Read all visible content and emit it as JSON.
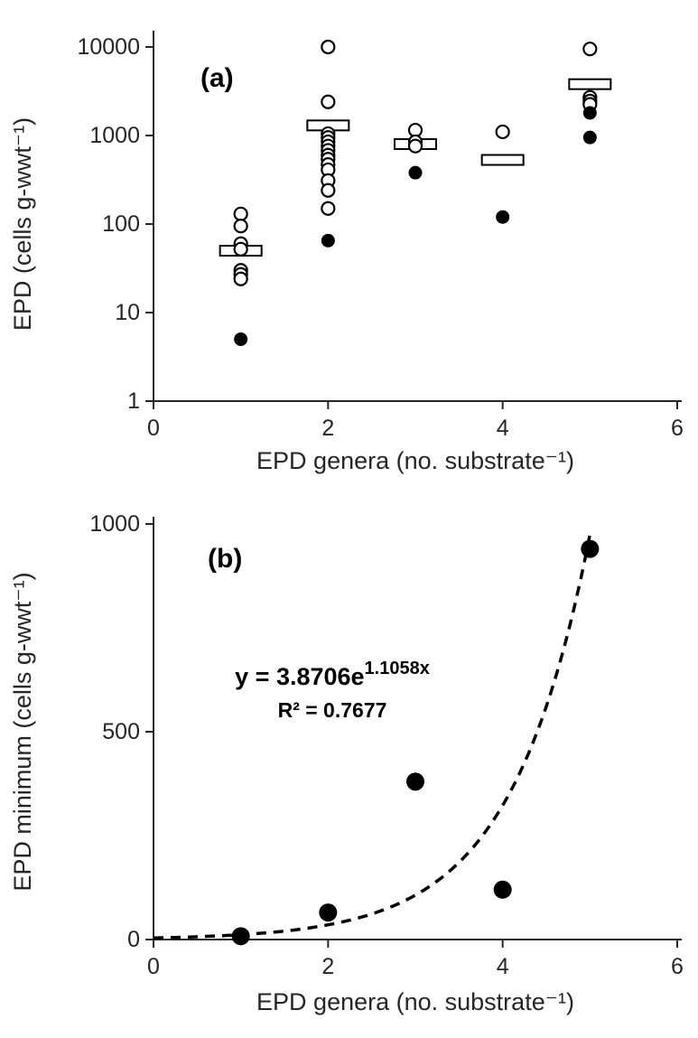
{
  "figure": {
    "background": "#ffffff",
    "marker_color": "#000000",
    "axis_color": "#262626"
  },
  "chart_data": [
    {
      "type": "scatter",
      "panel_label": "(a)",
      "xlabel": "EPD genera (no. substrate⁻¹)",
      "ylabel": "EPD (cells g-wwt⁻¹)",
      "xlim": [
        0,
        6
      ],
      "x_ticks": [
        0,
        2,
        4,
        6
      ],
      "y_scale": "log",
      "ylim": [
        1,
        10000
      ],
      "y_ticks": [
        1,
        10,
        100,
        1000,
        10000
      ],
      "grid": false,
      "legend": "none",
      "series": [
        {
          "name": "mean-bars",
          "marker": "bar",
          "points": [
            [
              1,
              50
            ],
            [
              2,
              1300
            ],
            [
              3,
              800
            ],
            [
              4,
              530
            ],
            [
              5,
              3800
            ]
          ]
        },
        {
          "name": "open-circles",
          "marker": "open-circle",
          "points": [
            [
              1,
              130
            ],
            [
              1,
              95
            ],
            [
              1,
              60
            ],
            [
              1,
              52
            ],
            [
              1,
              30
            ],
            [
              1,
              27
            ],
            [
              1,
              24
            ],
            [
              2,
              10000
            ],
            [
              2,
              2400
            ],
            [
              2,
              1050
            ],
            [
              2,
              950
            ],
            [
              2,
              850
            ],
            [
              2,
              760
            ],
            [
              2,
              680
            ],
            [
              2,
              600
            ],
            [
              2,
              540
            ],
            [
              2,
              470
            ],
            [
              2,
              410
            ],
            [
              2,
              310
            ],
            [
              2,
              240
            ],
            [
              2,
              150
            ],
            [
              3,
              1150
            ],
            [
              3,
              850
            ],
            [
              3,
              760
            ],
            [
              4,
              1100
            ],
            [
              5,
              9500
            ],
            [
              5,
              2700
            ],
            [
              5,
              2450
            ],
            [
              5,
              2250
            ]
          ]
        },
        {
          "name": "filled-circles",
          "marker": "filled-circle",
          "points": [
            [
              1,
              5
            ],
            [
              2,
              65
            ],
            [
              3,
              380
            ],
            [
              4,
              120
            ],
            [
              5,
              1800
            ],
            [
              5,
              950
            ]
          ]
        }
      ]
    },
    {
      "type": "scatter",
      "panel_label": "(b)",
      "xlabel": "EPD genera (no. substrate⁻¹)",
      "ylabel": "EPD minimum (cells g-wwt⁻¹)",
      "xlim": [
        0,
        6
      ],
      "x_ticks": [
        0,
        2,
        4,
        6
      ],
      "y_scale": "linear",
      "ylim": [
        0,
        1000
      ],
      "y_ticks": [
        0,
        500,
        1000
      ],
      "grid": false,
      "legend": "none",
      "series": [
        {
          "name": "epd-minimum",
          "marker": "filled-circle",
          "points": [
            [
              1,
              8
            ],
            [
              2,
              65
            ],
            [
              3,
              380
            ],
            [
              4,
              120
            ],
            [
              5,
              940
            ]
          ]
        }
      ],
      "fit": {
        "model": "exponential",
        "a": 3.8706,
        "b": 1.1058,
        "x_range": [
          0,
          5.0
        ],
        "style": "dashed",
        "eq_base": "y = 3.8706e",
        "eq_exp": "1.1058x",
        "r2": "R² = 0.7677"
      }
    }
  ]
}
